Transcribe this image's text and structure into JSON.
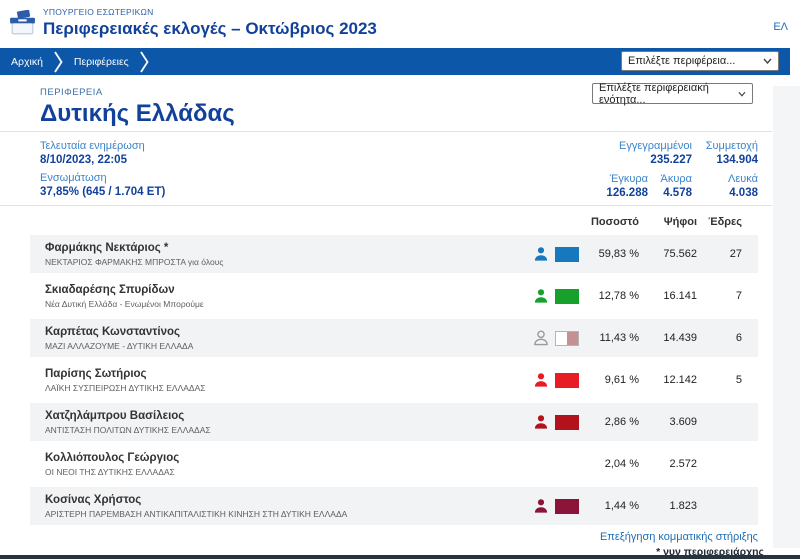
{
  "header": {
    "ministry": "ΥΠΟΥΡΓΕΙΟ ΕΣΩΤΕΡΙΚΩΝ",
    "title": "Περιφερειακές εκλογές – Οκτώβριος 2023",
    "language": "ΕΛ"
  },
  "breadcrumb": {
    "items": [
      "Αρχική",
      "Περιφέρειες"
    ]
  },
  "selectors": {
    "region_placeholder": "Επιλέξτε περιφέρεια...",
    "unit_placeholder": "Επιλέξτε περιφερειακή ενότητα..."
  },
  "region": {
    "kicker": "ΠΕΡΙΦΕΡΕΙΑ",
    "name": "Δυτικής Ελλάδας"
  },
  "stats": {
    "last_update_label": "Τελευταία ενημέρωση",
    "last_update_value": "8/10/2023, 22:05",
    "integration_label": "Ενσωμάτωση",
    "integration_value": "37,85% (645 / 1.704 ΕΤ)",
    "registered_label": "Εγγεγραμμένοι",
    "registered_value": "235.227",
    "turnout_label": "Συμμετοχή",
    "turnout_value": "134.904",
    "valid_label": "Έγκυρα",
    "valid_value": "126.288",
    "invalid_label": "Άκυρα",
    "invalid_value": "4.578",
    "blank_label": "Λευκά",
    "blank_value": "4.038"
  },
  "results": {
    "headers": {
      "percent": "Ποσοστό",
      "votes": "Ψήφοι",
      "seats": "Έδρες"
    },
    "rows": [
      {
        "name": "Φαρμάκης Νεκτάριος *",
        "party": "ΝΕΚΤΑΡΙΟΣ ΦΑΡΜΑΚΗΣ ΜΠΡΟΣΤΑ για όλους",
        "percent": "59,83 %",
        "votes": "75.562",
        "seats": "27",
        "icon_style": "filled",
        "color": "#1878be",
        "swatch": "solid"
      },
      {
        "name": "Σκιαδαρέσης Σπυρίδων",
        "party": "Νέα Δυτική Ελλάδα - Ενωμένοι Μπορούμε",
        "percent": "12,78 %",
        "votes": "16.141",
        "seats": "7",
        "icon_style": "filled",
        "color": "#18a02c",
        "swatch": "solid"
      },
      {
        "name": "Καρπέτας Κωνσταντίνος",
        "party": "ΜΑΖΙ ΑΛΛΑΖΟΥΜΕ - ΔΥΤΙΚΗ ΕΛΛΑΔΑ",
        "percent": "11,43 %",
        "votes": "14.439",
        "seats": "6",
        "icon_style": "outline",
        "color": "#9a9a9a",
        "swatch": "split",
        "swatch_left": "#ffffff",
        "swatch_right": "#c59091"
      },
      {
        "name": "Παρίσης Σωτήριος",
        "party": "ΛΑΪΚΗ ΣΥΣΠΕΙΡΩΣΗ ΔΥΤΙΚΗΣ ΕΛΛΑΔΑΣ",
        "percent": "9,61 %",
        "votes": "12.142",
        "seats": "",
        "icon_style": "filled",
        "color": "#e81c24",
        "swatch": "solid",
        "seats_shown": "5"
      },
      {
        "name": "Χατζηλάμπρου Βασίλειος",
        "party": "ΑΝΤΙΣΤΑΣΗ ΠΟΛΙΤΩΝ ΔΥΤΙΚΗΣ ΕΛΛΑΔΑΣ",
        "percent": "2,86 %",
        "votes": "3.609",
        "seats": "",
        "icon_style": "filled",
        "color": "#b1121b",
        "swatch": "solid"
      },
      {
        "name": "Κολλιόπουλος Γεώργιος",
        "party": "ΟΙ ΝΕΟΙ ΤΗΣ ΔΥΤΙΚΗΣ ΕΛΛΑΔΑΣ",
        "percent": "2,04 %",
        "votes": "2.572",
        "seats": "",
        "icon_style": "none",
        "color": "",
        "swatch": "none"
      },
      {
        "name": "Κοσίνας Χρήστος",
        "party": "ΑΡΙΣΤΕΡΗ ΠΑΡΕΜΒΑΣΗ ΑΝΤΙΚΑΠΙΤΑΛΙΣΤΙΚΗ ΚΙΝΗΣΗ ΣΤΗ ΔΥΤΙΚΗ ΕΛΛΑΔΑ",
        "percent": "1,44 %",
        "votes": "1.823",
        "seats": "",
        "icon_style": "filled",
        "color": "#8a1538",
        "swatch": "solid"
      }
    ]
  },
  "footer": {
    "legend_link": "Επεξήγηση κομματικής στήριξης",
    "note": "* νυν περιφερειάρχης"
  }
}
